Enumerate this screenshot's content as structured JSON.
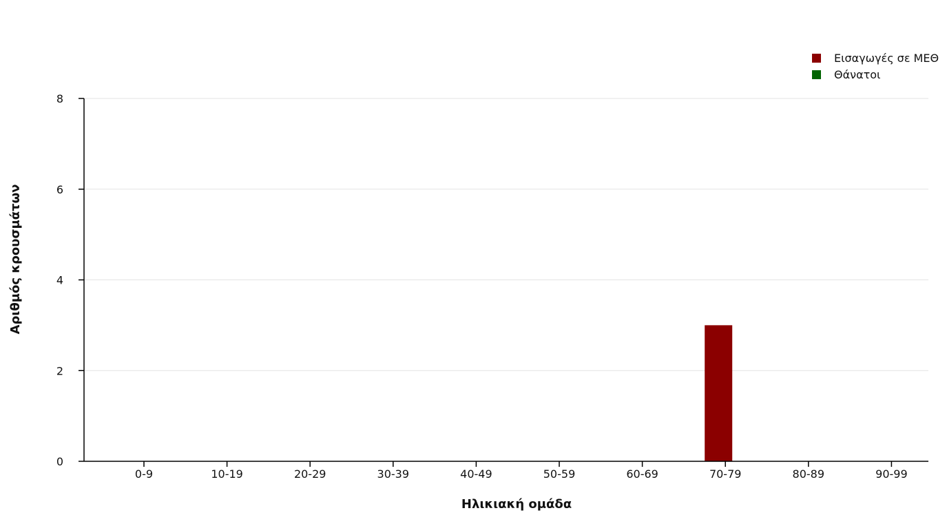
{
  "chart_data": {
    "type": "bar",
    "categories": [
      "0-9",
      "10-19",
      "20-29",
      "30-39",
      "40-49",
      "50-59",
      "60-69",
      "70-79",
      "80-89",
      "90-99"
    ],
    "series": [
      {
        "name": "Εισαγωγές σε ΜΕΘ",
        "color": "#8b0000",
        "values": [
          0,
          0,
          0,
          0,
          0,
          0,
          0,
          3,
          0,
          0
        ]
      },
      {
        "name": "Θάνατοι",
        "color": "#006400",
        "values": [
          0,
          0,
          0,
          0,
          0,
          0,
          0,
          0,
          0,
          0
        ]
      }
    ],
    "title": "",
    "xlabel": "Ηλικιακή ομάδα",
    "ylabel": "Αριθμός κρουσμάτων",
    "ylim": [
      0,
      8
    ],
    "yticks": [
      0,
      2,
      4,
      6,
      8
    ],
    "grid": true,
    "legend_position": "top-right"
  }
}
